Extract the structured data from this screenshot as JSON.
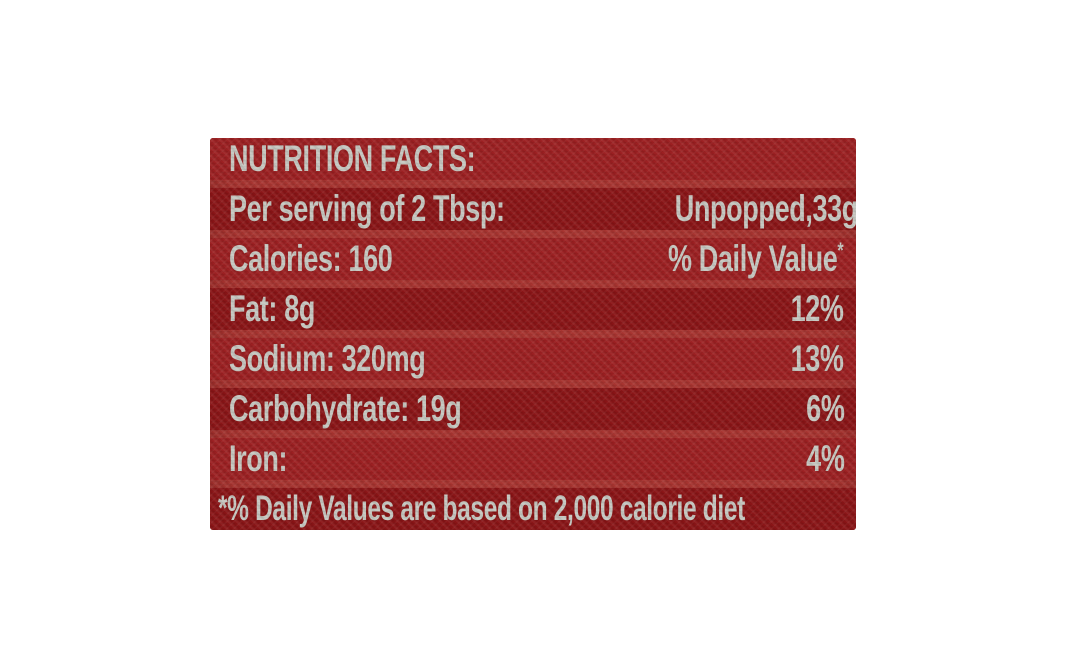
{
  "label": {
    "title": "NUTRITION FACTS:",
    "serving": {
      "label": "Per serving of 2 Tbsp:",
      "value": "Unpopped,33g"
    },
    "calories": {
      "label": "Calories: 160",
      "daily_value_header": "% Daily Value",
      "daily_value_footnote_marker": "*"
    },
    "nutrients": [
      {
        "name": "Fat: 8g",
        "daily_value": "12%"
      },
      {
        "name": "Sodium: 320mg",
        "daily_value": "13%"
      },
      {
        "name": "Carbohydrate: 19g",
        "daily_value": "6%"
      },
      {
        "name": "Iron:",
        "daily_value": "4%"
      }
    ],
    "footnote": "*% Daily Values are based on 2,000 calorie diet",
    "colors": {
      "band_light": "#9c2022",
      "band_dark": "#8a1517",
      "separator": "#a73430",
      "text": "#c6c7c1",
      "page_bg": "#ffffff"
    }
  }
}
